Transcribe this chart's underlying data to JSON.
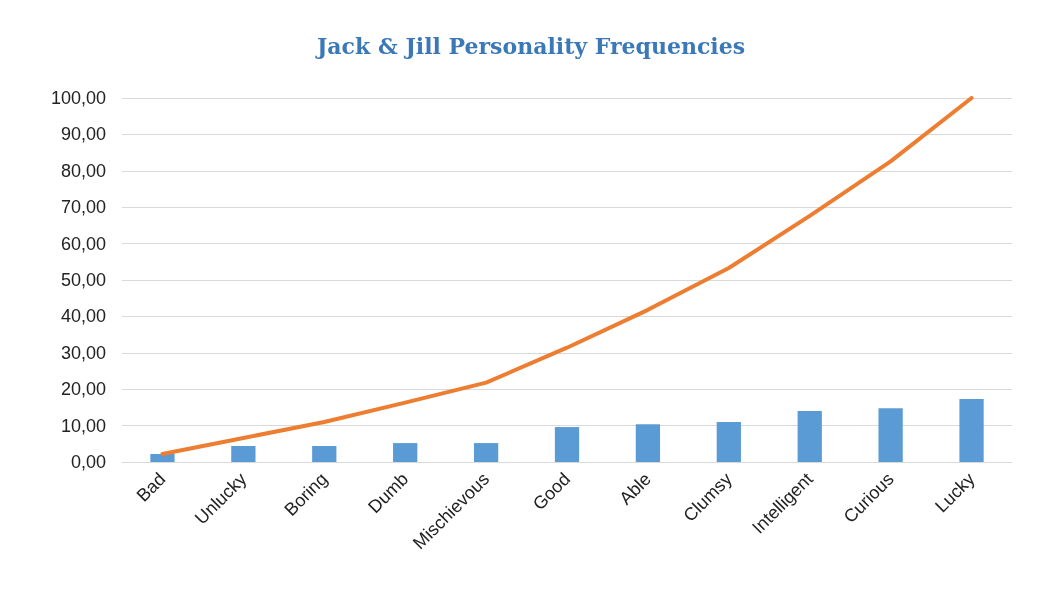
{
  "chart_data": {
    "type": "bar",
    "title": "Jack & Jill Personality Frequencies",
    "categories": [
      "Bad",
      "Unlucky",
      "Boring",
      "Dumb",
      "Mischievous",
      "Good",
      "Able",
      "Clumsy",
      "Intelligent",
      "Curious",
      "Lucky"
    ],
    "series": [
      {
        "color": "#5b9bd5",
        "values": [
          2.2,
          4.4,
          4.4,
          5.2,
          5.2,
          9.6,
          10.4,
          11.0,
          14.0,
          14.8,
          17.3
        ]
      },
      {
        "type": "line",
        "color": "#ed7d31",
        "values": [
          2.2,
          6.6,
          11.0,
          16.3,
          21.8,
          31.4,
          41.8,
          53.3,
          67.6,
          82.6,
          100
        ]
      }
    ],
    "ylim": [
      0,
      100
    ],
    "yticks": [
      {
        "value": 0,
        "label": "0,00"
      },
      {
        "value": 10,
        "label": "10,00"
      },
      {
        "value": 20,
        "label": "20,00"
      },
      {
        "value": 30,
        "label": "30,00"
      },
      {
        "value": 40,
        "label": "40,00"
      },
      {
        "value": 50,
        "label": "50,00"
      },
      {
        "value": 60,
        "label": "60,00"
      },
      {
        "value": 70,
        "label": "70,00"
      },
      {
        "value": 80,
        "label": "80,00"
      },
      {
        "value": 90,
        "label": "90,00"
      },
      {
        "value": 100,
        "label": "100,00"
      }
    ],
    "grid": "y",
    "marker": "none"
  }
}
